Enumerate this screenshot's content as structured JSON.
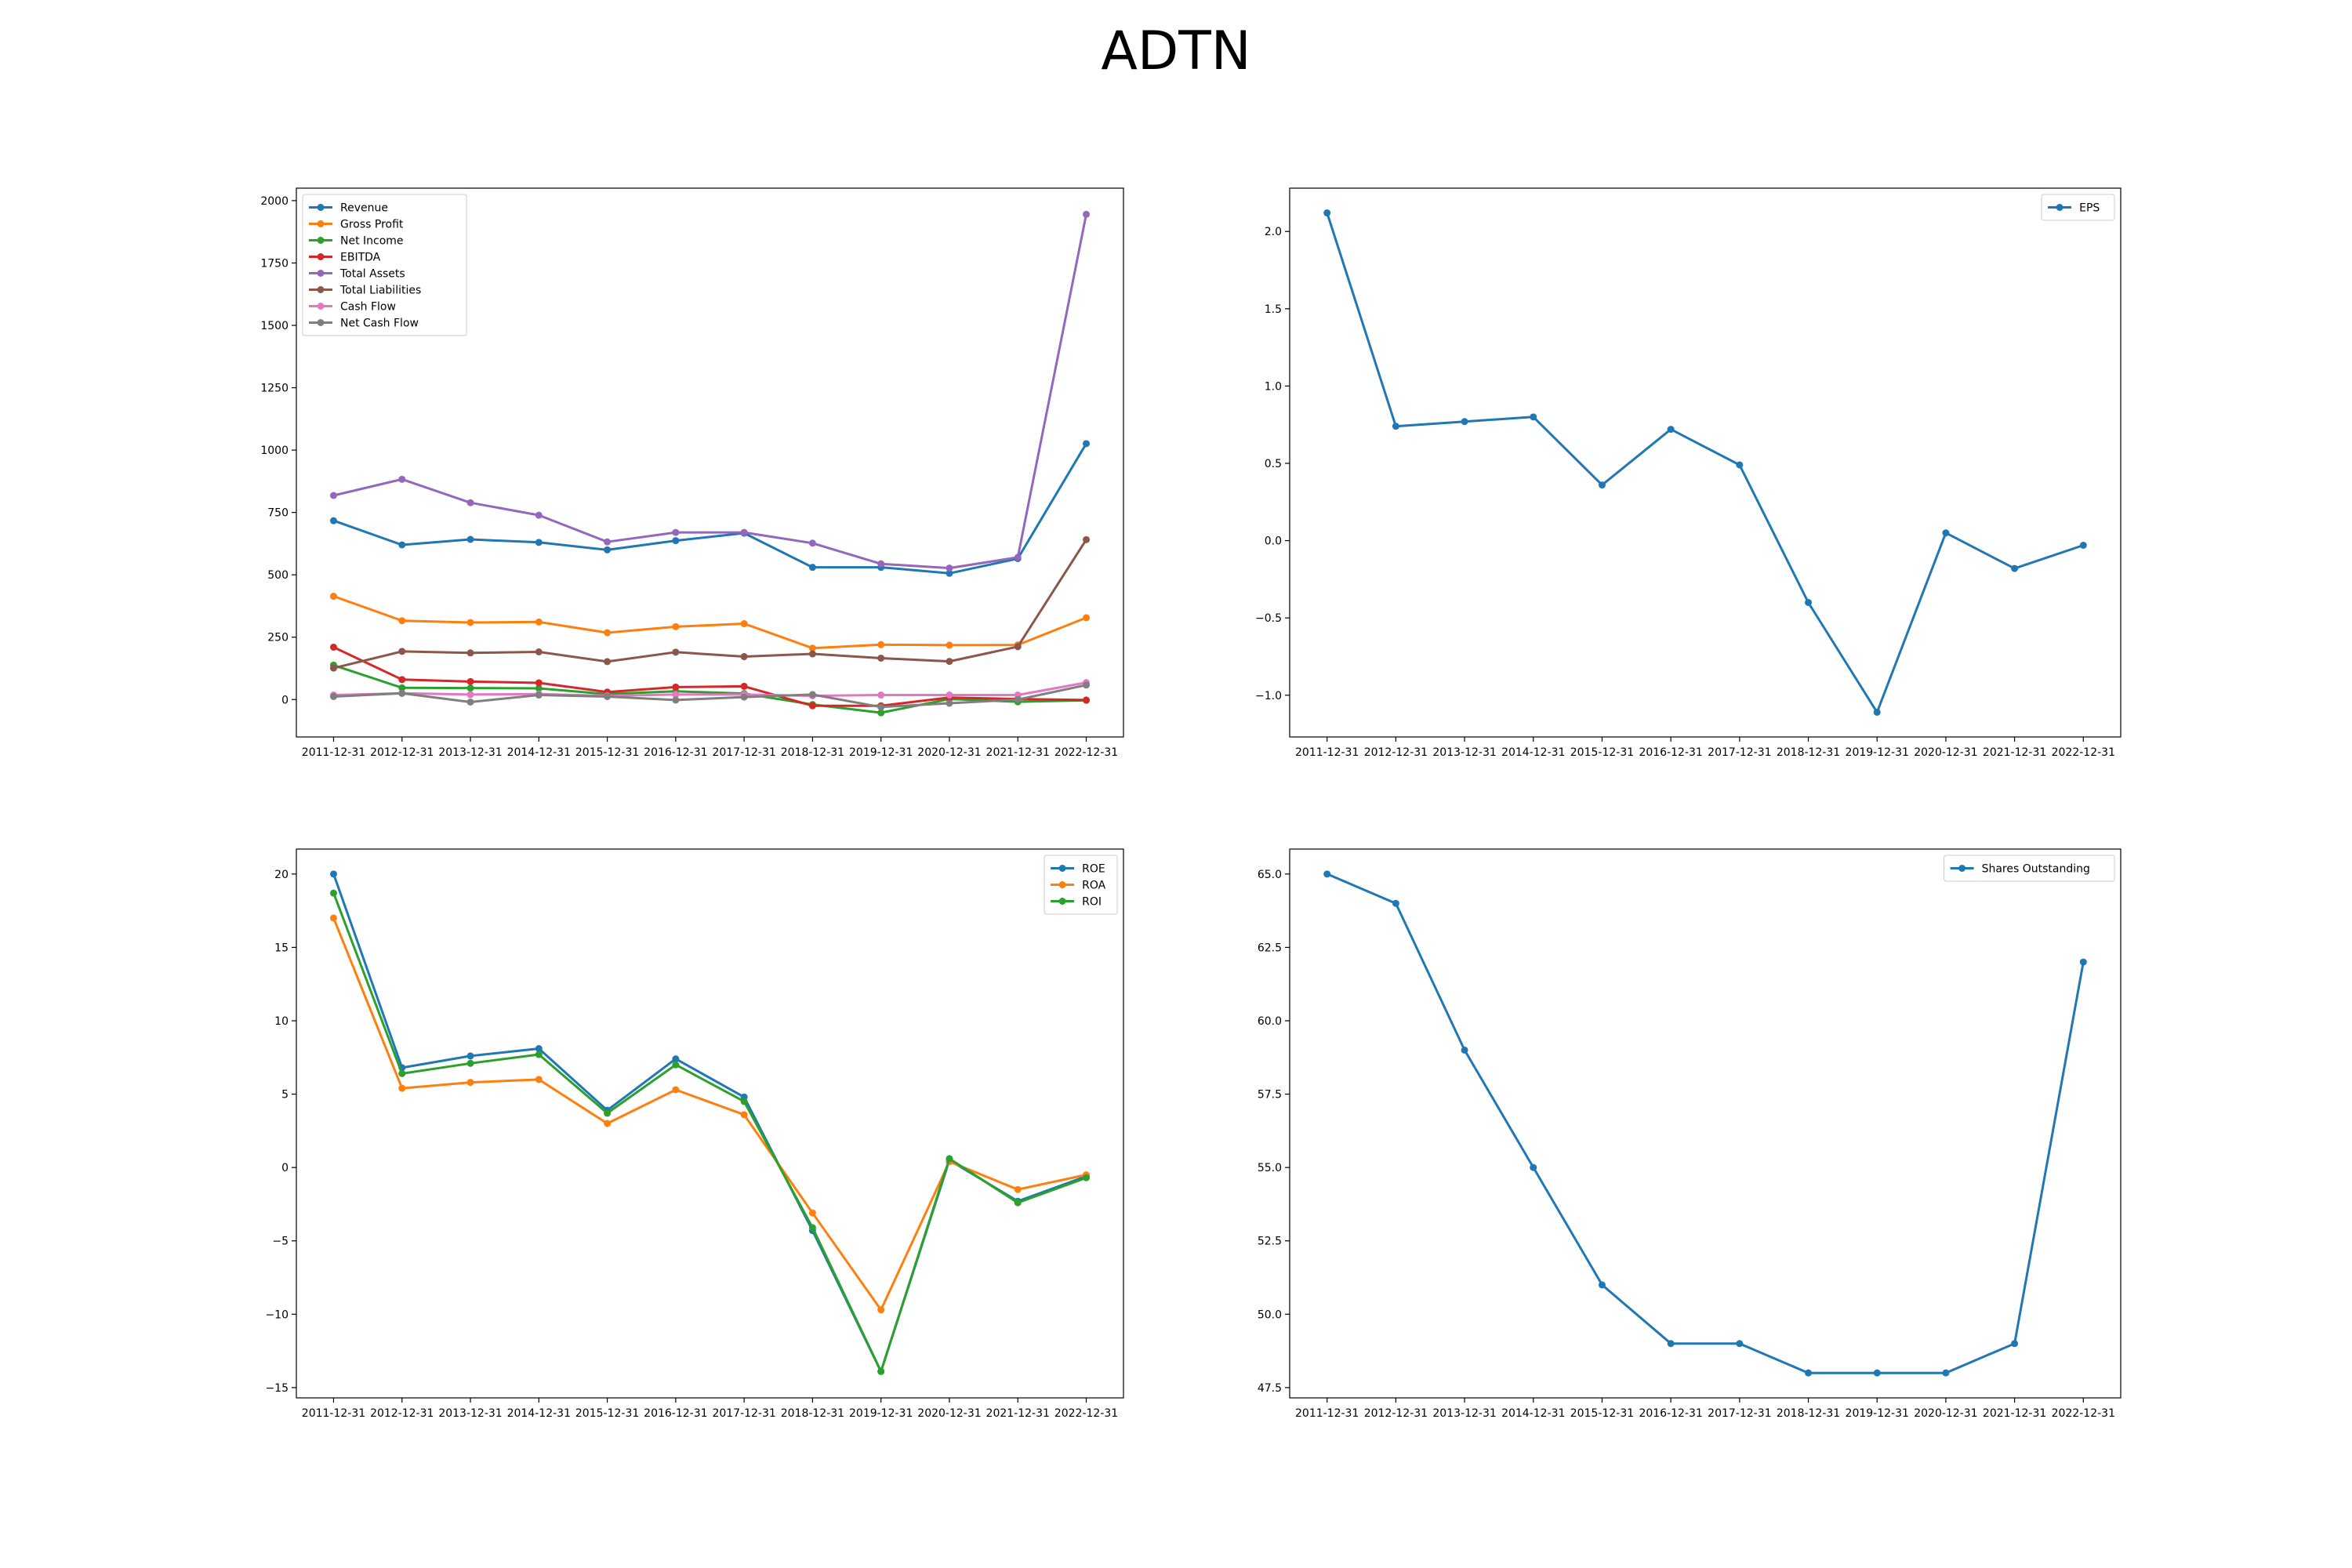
{
  "figure": {
    "title": "ADTN"
  },
  "colors": {
    "blue": "#1f77b4",
    "orange": "#ff7f0e",
    "green": "#2ca02c",
    "red": "#d62728",
    "purple": "#9467bd",
    "brown": "#8c564b",
    "pink": "#e377c2",
    "gray": "#7f7f7f"
  },
  "chart_data": [
    {
      "type": "line",
      "x": [
        "2011-12-31",
        "2012-12-31",
        "2013-12-31",
        "2014-12-31",
        "2015-12-31",
        "2016-12-31",
        "2017-12-31",
        "2018-12-31",
        "2019-12-31",
        "2020-12-31",
        "2021-12-31",
        "2022-12-31"
      ],
      "ylim": [
        -150,
        2050
      ],
      "yticks": [
        0,
        250,
        500,
        750,
        1000,
        1250,
        1500,
        1750,
        2000
      ],
      "ytick_labels": [
        "0",
        "250",
        "500",
        "750",
        "1000",
        "1250",
        "1500",
        "1750",
        "2000"
      ],
      "legend_loc": "upper left",
      "series": [
        {
          "name": "Revenue",
          "color": "#1f77b4",
          "values": [
            717,
            620,
            642,
            630,
            600,
            637,
            667,
            530,
            530,
            506,
            565,
            1026
          ]
        },
        {
          "name": "Gross Profit",
          "color": "#ff7f0e",
          "values": [
            414,
            316,
            309,
            311,
            268,
            292,
            304,
            206,
            220,
            218,
            219,
            328
          ]
        },
        {
          "name": "Net Income",
          "color": "#2ca02c",
          "values": [
            138,
            47,
            46,
            45,
            22,
            33,
            24,
            -20,
            -53,
            2,
            -9,
            -3
          ]
        },
        {
          "name": "EBITDA",
          "color": "#d62728",
          "values": [
            210,
            80,
            72,
            67,
            30,
            50,
            53,
            -25,
            -25,
            8,
            2,
            -2
          ]
        },
        {
          "name": "Total Assets",
          "color": "#9467bd",
          "values": [
            818,
            883,
            789,
            739,
            632,
            670,
            670,
            627,
            544,
            527,
            570,
            1945
          ]
        },
        {
          "name": "Total Liabilities",
          "color": "#8c564b",
          "values": [
            126,
            193,
            187,
            191,
            152,
            190,
            172,
            183,
            166,
            153,
            212,
            641
          ]
        },
        {
          "name": "Cash Flow",
          "color": "#e377c2",
          "values": [
            18,
            25,
            20,
            22,
            15,
            20,
            20,
            15,
            18,
            18,
            18,
            68
          ]
        },
        {
          "name": "Net Cash Flow",
          "color": "#7f7f7f",
          "values": [
            12,
            25,
            -10,
            18,
            12,
            -2,
            10,
            20,
            -30,
            -15,
            0,
            58
          ]
        }
      ]
    },
    {
      "type": "line",
      "x": [
        "2011-12-31",
        "2012-12-31",
        "2013-12-31",
        "2014-12-31",
        "2015-12-31",
        "2016-12-31",
        "2017-12-31",
        "2018-12-31",
        "2019-12-31",
        "2020-12-31",
        "2021-12-31",
        "2022-12-31"
      ],
      "ylim": [
        -1.27,
        2.28
      ],
      "yticks": [
        -1.0,
        -0.5,
        0.0,
        0.5,
        1.0,
        1.5,
        2.0
      ],
      "ytick_labels": [
        "−1.0",
        "−0.5",
        "0.0",
        "0.5",
        "1.0",
        "1.5",
        "2.0"
      ],
      "legend_loc": "upper right",
      "series": [
        {
          "name": "EPS",
          "color": "#1f77b4",
          "values": [
            2.12,
            0.74,
            0.77,
            0.8,
            0.36,
            0.72,
            0.49,
            -0.4,
            -1.11,
            0.05,
            -0.18,
            -0.03
          ]
        }
      ]
    },
    {
      "type": "line",
      "x": [
        "2011-12-31",
        "2012-12-31",
        "2013-12-31",
        "2014-12-31",
        "2015-12-31",
        "2016-12-31",
        "2017-12-31",
        "2018-12-31",
        "2019-12-31",
        "2020-12-31",
        "2021-12-31",
        "2022-12-31"
      ],
      "ylim": [
        -15.7,
        21.7
      ],
      "yticks": [
        -15,
        -10,
        -5,
        0,
        5,
        10,
        15,
        20
      ],
      "ytick_labels": [
        "−15",
        "−10",
        "−5",
        "0",
        "5",
        "10",
        "15",
        "20"
      ],
      "legend_loc": "upper right",
      "series": [
        {
          "name": "ROE",
          "color": "#1f77b4",
          "values": [
            20.0,
            6.8,
            7.6,
            8.1,
            3.9,
            7.4,
            4.8,
            -4.3,
            -13.9,
            0.5,
            -2.3,
            -0.6
          ]
        },
        {
          "name": "ROA",
          "color": "#ff7f0e",
          "values": [
            17.0,
            5.4,
            5.8,
            6.0,
            3.0,
            5.3,
            3.6,
            -3.1,
            -9.7,
            0.4,
            -1.5,
            -0.5
          ]
        },
        {
          "name": "ROI",
          "color": "#2ca02c",
          "values": [
            18.7,
            6.4,
            7.1,
            7.7,
            3.7,
            7.0,
            4.5,
            -4.1,
            -13.9,
            0.6,
            -2.4,
            -0.7
          ]
        }
      ]
    },
    {
      "type": "line",
      "x": [
        "2011-12-31",
        "2012-12-31",
        "2013-12-31",
        "2014-12-31",
        "2015-12-31",
        "2016-12-31",
        "2017-12-31",
        "2018-12-31",
        "2019-12-31",
        "2020-12-31",
        "2021-12-31",
        "2022-12-31"
      ],
      "ylim": [
        47.15,
        65.85
      ],
      "yticks": [
        47.5,
        50.0,
        52.5,
        55.0,
        57.5,
        60.0,
        62.5,
        65.0
      ],
      "ytick_labels": [
        "47.5",
        "50.0",
        "52.5",
        "55.0",
        "57.5",
        "60.0",
        "62.5",
        "65.0"
      ],
      "legend_loc": "upper right",
      "series": [
        {
          "name": "Shares Outstanding",
          "color": "#1f77b4",
          "values": [
            65,
            64,
            59,
            55,
            51,
            49,
            49,
            48,
            48,
            48,
            49,
            62
          ]
        }
      ]
    }
  ]
}
